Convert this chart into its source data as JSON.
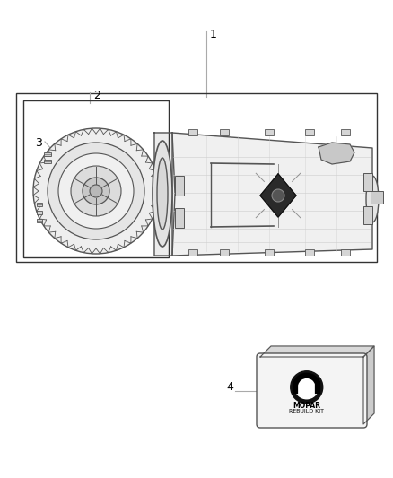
{
  "bg_color": "#ffffff",
  "line_color": "#333333",
  "light_gray": "#aaaaaa",
  "medium_gray": "#888888",
  "dark_gray": "#555555",
  "figure_width": 4.38,
  "figure_height": 5.33,
  "label1": "1",
  "label2": "2",
  "label3": "3",
  "label4": "4",
  "mopar_text": "MOPAR",
  "rebuild_text": "REBUILD KIT"
}
